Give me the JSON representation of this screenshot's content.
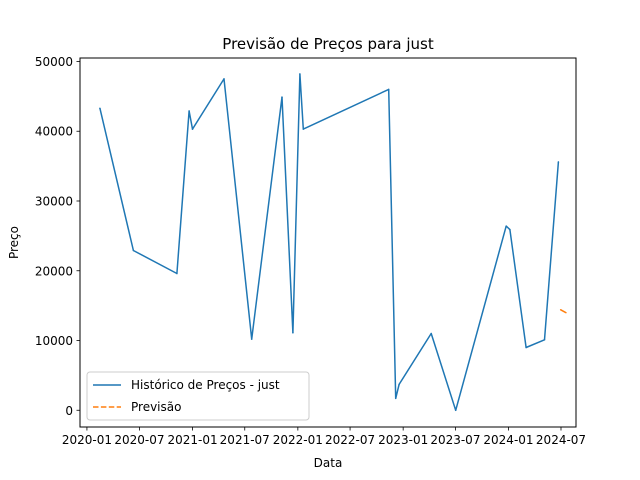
{
  "chart_data": {
    "type": "line",
    "title": "Previsão de Preços para just",
    "xlabel": "Data",
    "ylabel": "Preço",
    "x_axis_type": "date",
    "xlim": [
      "2019-12-08",
      "2024-08-22"
    ],
    "ylim": [
      -2400,
      50500
    ],
    "x_ticks": [
      {
        "date": "2020-01-01",
        "label": "2020-01"
      },
      {
        "date": "2020-07-01",
        "label": "2020-07"
      },
      {
        "date": "2021-01-01",
        "label": "2021-01"
      },
      {
        "date": "2021-07-01",
        "label": "2021-07"
      },
      {
        "date": "2022-01-01",
        "label": "2022-01"
      },
      {
        "date": "2022-07-01",
        "label": "2022-07"
      },
      {
        "date": "2023-01-01",
        "label": "2023-01"
      },
      {
        "date": "2023-07-01",
        "label": "2023-07"
      },
      {
        "date": "2024-01-01",
        "label": "2024-01"
      },
      {
        "date": "2024-07-01",
        "label": "2024-07"
      }
    ],
    "y_ticks": [
      {
        "value": 0,
        "label": "0"
      },
      {
        "value": 10000,
        "label": "10000"
      },
      {
        "value": 20000,
        "label": "20000"
      },
      {
        "value": 30000,
        "label": "30000"
      },
      {
        "value": 40000,
        "label": "40000"
      },
      {
        "value": 50000,
        "label": "50000"
      }
    ],
    "grid": false,
    "legend_position": "lower-left",
    "series": [
      {
        "name": "Histórico de Preços - just",
        "color": "#1f77b4",
        "style": "solid",
        "points": [
          {
            "x": "2020-02-15",
            "y": 43300
          },
          {
            "x": "2020-06-10",
            "y": 22900
          },
          {
            "x": "2020-11-08",
            "y": 19600
          },
          {
            "x": "2020-12-20",
            "y": 42900
          },
          {
            "x": "2021-01-01",
            "y": 40300
          },
          {
            "x": "2021-04-20",
            "y": 47500
          },
          {
            "x": "2021-07-25",
            "y": 10200
          },
          {
            "x": "2021-11-07",
            "y": 44900
          },
          {
            "x": "2021-12-15",
            "y": 11100
          },
          {
            "x": "2022-01-08",
            "y": 48200
          },
          {
            "x": "2022-01-20",
            "y": 40300
          },
          {
            "x": "2022-11-12",
            "y": 46000
          },
          {
            "x": "2022-12-06",
            "y": 1700
          },
          {
            "x": "2022-12-18",
            "y": 3700
          },
          {
            "x": "2023-04-08",
            "y": 11000
          },
          {
            "x": "2023-07-02",
            "y": 0
          },
          {
            "x": "2023-12-24",
            "y": 26400
          },
          {
            "x": "2024-01-06",
            "y": 25900
          },
          {
            "x": "2024-03-02",
            "y": 9000
          },
          {
            "x": "2024-05-05",
            "y": 10100
          },
          {
            "x": "2024-06-22",
            "y": 35600
          }
        ]
      },
      {
        "name": "Previsão",
        "color": "#ff7f0e",
        "style": "dashed",
        "points": [
          {
            "x": "2024-06-30",
            "y": 14400
          },
          {
            "x": "2024-07-18",
            "y": 14000
          }
        ]
      }
    ]
  }
}
